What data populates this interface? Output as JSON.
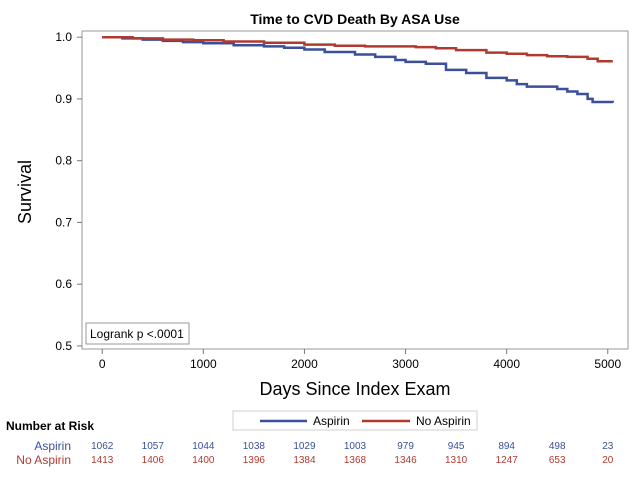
{
  "chart_data": {
    "type": "line",
    "title": "Time to CVD Death By ASA Use",
    "xlabel": "Days Since Index Exam",
    "ylabel": "Survival",
    "xlim": [
      -200,
      5200
    ],
    "ylim": [
      0.495,
      1.01
    ],
    "x_ticks": [
      0,
      1000,
      2000,
      3000,
      4000,
      5000
    ],
    "y_ticks": [
      0.5,
      0.6,
      0.7,
      0.8,
      0.9,
      1.0
    ],
    "x_tick_labels": [
      "0",
      "1000",
      "2000",
      "3000",
      "4000",
      "5000"
    ],
    "y_tick_labels": [
      "0.5",
      "0.6",
      "0.7",
      "0.8",
      "0.9",
      "1.0"
    ],
    "grid": false,
    "legend_position": "bottom",
    "series": [
      {
        "name": "Aspirin",
        "color": "#3b4f9a",
        "step": true,
        "points": [
          [
            0,
            1.0
          ],
          [
            200,
            0.998
          ],
          [
            400,
            0.996
          ],
          [
            600,
            0.994
          ],
          [
            800,
            0.992
          ],
          [
            1000,
            0.99
          ],
          [
            1300,
            0.987
          ],
          [
            1600,
            0.985
          ],
          [
            1800,
            0.983
          ],
          [
            2000,
            0.98
          ],
          [
            2200,
            0.976
          ],
          [
            2500,
            0.972
          ],
          [
            2700,
            0.968
          ],
          [
            2900,
            0.963
          ],
          [
            3000,
            0.96
          ],
          [
            3200,
            0.957
          ],
          [
            3400,
            0.947
          ],
          [
            3600,
            0.942
          ],
          [
            3800,
            0.934
          ],
          [
            4000,
            0.93
          ],
          [
            4100,
            0.924
          ],
          [
            4200,
            0.92
          ],
          [
            4500,
            0.916
          ],
          [
            4600,
            0.912
          ],
          [
            4700,
            0.908
          ],
          [
            4800,
            0.9
          ],
          [
            4850,
            0.895
          ],
          [
            5050,
            0.894
          ]
        ]
      },
      {
        "name": "No Aspirin",
        "color": "#b13a30",
        "step": true,
        "points": [
          [
            0,
            1.0
          ],
          [
            300,
            0.998
          ],
          [
            600,
            0.996
          ],
          [
            900,
            0.995
          ],
          [
            1200,
            0.993
          ],
          [
            1600,
            0.991
          ],
          [
            2000,
            0.988
          ],
          [
            2300,
            0.986
          ],
          [
            2600,
            0.985
          ],
          [
            3100,
            0.984
          ],
          [
            3300,
            0.982
          ],
          [
            3500,
            0.979
          ],
          [
            3800,
            0.975
          ],
          [
            4000,
            0.973
          ],
          [
            4200,
            0.971
          ],
          [
            4400,
            0.969
          ],
          [
            4600,
            0.968
          ],
          [
            4800,
            0.965
          ],
          [
            4900,
            0.961
          ],
          [
            5050,
            0.961
          ]
        ]
      }
    ],
    "annotation": "Logrank p <.0001",
    "risk_table": {
      "header": "Number at Risk",
      "times": [
        0,
        500,
        1000,
        1500,
        2000,
        2500,
        3000,
        3500,
        4000,
        4500,
        5000
      ],
      "rows": [
        {
          "label": "Aspirin",
          "color": "#3b4f9a",
          "values": [
            "1062",
            "1057",
            "1044",
            "1038",
            "1029",
            "1003",
            "979",
            "945",
            "894",
            "498",
            "23"
          ]
        },
        {
          "label": "No Aspirin",
          "color": "#b13a30",
          "values": [
            "1413",
            "1406",
            "1400",
            "1396",
            "1384",
            "1368",
            "1346",
            "1310",
            "1247",
            "653",
            "20"
          ]
        }
      ]
    }
  }
}
